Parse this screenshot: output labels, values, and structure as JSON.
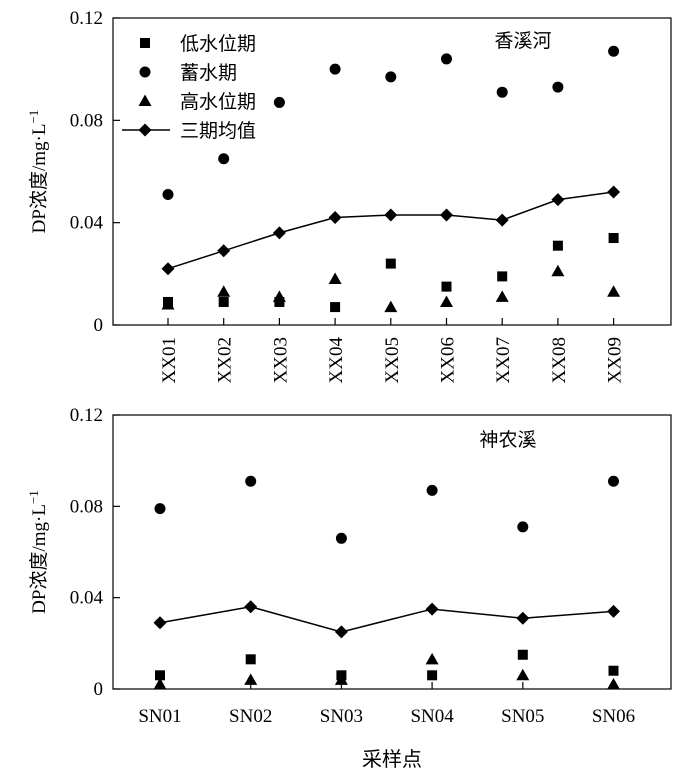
{
  "chart_data": [
    {
      "type": "scatter",
      "title": "香溪河",
      "ylabel": "DP浓度/mg·L⁻¹",
      "ylabel_main": "DP浓度/mg·L",
      "ylabel_sup": "−1",
      "ylim": [
        0,
        0.12
      ],
      "yticks": [
        "0",
        "0.04",
        "0.08",
        "0.12"
      ],
      "ytick_values": [
        0,
        0.04,
        0.08,
        0.12
      ],
      "categories": [
        "XX01",
        "XX02",
        "XX03",
        "XX04",
        "XX05",
        "XX06",
        "XX07",
        "XX08",
        "XX09"
      ],
      "legend_position": "top-left",
      "series": [
        {
          "name": "低水位期",
          "marker": "square",
          "values": [
            0.009,
            0.009,
            0.009,
            0.007,
            0.024,
            0.015,
            0.019,
            0.031,
            0.034
          ]
        },
        {
          "name": "蓄水期",
          "marker": "circle",
          "values": [
            0.051,
            0.065,
            0.087,
            0.1,
            0.097,
            0.104,
            0.091,
            0.093,
            0.107
          ]
        },
        {
          "name": "高水位期",
          "marker": "triangle",
          "values": [
            0.008,
            0.013,
            0.011,
            0.018,
            0.007,
            0.009,
            0.011,
            0.021,
            0.013
          ]
        },
        {
          "name": "三期均值",
          "marker": "diamond",
          "line": true,
          "values": [
            0.022,
            0.029,
            0.036,
            0.042,
            0.043,
            0.043,
            0.041,
            0.049,
            0.052
          ]
        }
      ]
    },
    {
      "type": "scatter",
      "title": "神农溪",
      "ylabel": "DP浓度/mg·L⁻¹",
      "ylabel_main": "DP浓度/mg·L",
      "ylabel_sup": "−1",
      "xlabel": "采样点",
      "ylim": [
        0,
        0.12
      ],
      "yticks": [
        "0",
        "0.04",
        "0.08",
        "0.12"
      ],
      "ytick_values": [
        0,
        0.04,
        0.08,
        0.12
      ],
      "categories": [
        "SN01",
        "SN02",
        "SN03",
        "SN04",
        "SN05",
        "SN06"
      ],
      "series": [
        {
          "marker": "square",
          "values": [
            0.006,
            0.013,
            0.006,
            0.006,
            0.015,
            0.008
          ]
        },
        {
          "marker": "circle",
          "values": [
            0.079,
            0.091,
            0.066,
            0.087,
            0.071,
            0.091
          ]
        },
        {
          "marker": "triangle",
          "values": [
            0.002,
            0.004,
            0.004,
            0.013,
            0.006,
            0.002
          ]
        },
        {
          "marker": "diamond",
          "line": true,
          "values": [
            0.029,
            0.036,
            0.025,
            0.035,
            0.031,
            0.034
          ]
        }
      ]
    }
  ]
}
